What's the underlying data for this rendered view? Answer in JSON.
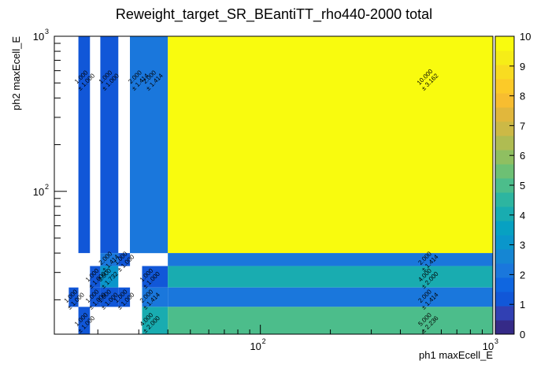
{
  "chart_data": {
    "type": "heatmap",
    "title": "Reweight_target_SR_BEantiTT_rho440-2000 total",
    "xlabel": "ph1 maxEcell_E",
    "ylabel": "ph2 maxEcell_E",
    "x_scale": "log",
    "y_scale": "log",
    "xlim": [
      13,
      1000
    ],
    "ylim": [
      12,
      1000
    ],
    "x_major_ticks": [
      {
        "value": 100,
        "label": "10",
        "exp": "2"
      },
      {
        "value": 1000,
        "label": "10",
        "exp": "3"
      }
    ],
    "y_major_ticks": [
      {
        "value": 100,
        "label": "10",
        "exp": "2"
      },
      {
        "value": 1000,
        "label": "10",
        "exp": "3"
      }
    ],
    "zlim": [
      0,
      10
    ],
    "colorbar_ticks": [
      "0",
      "1",
      "2",
      "3",
      "4",
      "5",
      "6",
      "7",
      "8",
      "9",
      "10"
    ],
    "colorbar_colors": [
      "#352a87",
      "#3140b3",
      "#1157d8",
      "#0f66e0",
      "#1a77dc",
      "#1586d3",
      "#0a96cb",
      "#07a1c2",
      "#19acb0",
      "#2db5a0",
      "#4cbd8b",
      "#6dc074",
      "#8fbf61",
      "#afbc52",
      "#ccb946",
      "#e1b73c",
      "#f7bd30",
      "#fcca28",
      "#f8dc21",
      "#f6ed17",
      "#f9fb0e"
    ],
    "grid": false,
    "cells": [
      {
        "x0": 16.5,
        "x1": 18.5,
        "y0": 40,
        "y1": 1000,
        "value": 1.0,
        "value_label": "1.000",
        "error_label": "± 1.000",
        "label_x": 17.3,
        "label_y": 530
      },
      {
        "x0": 20.5,
        "x1": 24.5,
        "y0": 40,
        "y1": 1000,
        "value": 1.0,
        "value_label": "1.000",
        "error_label": "± 1.000",
        "label_x": 22.0,
        "label_y": 530
      },
      {
        "x0": 27.5,
        "x1": 40,
        "y0": 40,
        "y1": 1000,
        "value": 2.0,
        "value_label": "2.000",
        "error_label": "± 1.414",
        "label_x": 29.5,
        "label_y": 530
      },
      {
        "x0": 27.5,
        "x1": 40,
        "y0": 40,
        "y1": 1000,
        "value": 2.0,
        "value_label": "2.000",
        "error_label": "± 1.414",
        "label_x": 34.0,
        "label_y": 530
      },
      {
        "x0": 40,
        "x1": 1000,
        "y0": 40,
        "y1": 1000,
        "value": 10.0,
        "value_label": "10.000",
        "error_label": "± 3.162",
        "label_x": 520,
        "label_y": 530
      },
      {
        "x0": 20.5,
        "x1": 24.5,
        "y0": 33,
        "y1": 40,
        "value": 2.0,
        "value_label": "2.000",
        "error_label": "± 1.414",
        "label_x": 22.0,
        "label_y": 36
      },
      {
        "x0": 24.5,
        "x1": 27.5,
        "y0": 33,
        "y1": 40,
        "value": 1.0,
        "value_label": "1.000",
        "error_label": "± 1.000",
        "label_x": 25.6,
        "label_y": 36
      },
      {
        "x0": 40,
        "x1": 1000,
        "y0": 33,
        "y1": 40,
        "value": 2.0,
        "value_label": "2.000",
        "error_label": "± 1.414",
        "label_x": 520,
        "label_y": 36
      },
      {
        "x0": 18.5,
        "x1": 20.5,
        "y0": 24,
        "y1": 33,
        "value": 1.0,
        "value_label": "1.000",
        "error_label": "± 1.000",
        "label_x": 19.3,
        "label_y": 28
      },
      {
        "x0": 20.5,
        "x1": 24.5,
        "y0": 24,
        "y1": 33,
        "value": 3.0,
        "value_label": "3.000",
        "error_label": "± 1.732",
        "label_x": 21.8,
        "label_y": 28
      },
      {
        "x0": 31,
        "x1": 40,
        "y0": 24,
        "y1": 33,
        "value": 1.0,
        "value_label": "1.000",
        "error_label": "± 1.000",
        "label_x": 33.0,
        "label_y": 28
      },
      {
        "x0": 40,
        "x1": 1000,
        "y0": 24,
        "y1": 33,
        "value": 4.0,
        "value_label": "4.000",
        "error_label": "± 2.000",
        "label_x": 520,
        "label_y": 28
      },
      {
        "x0": 15,
        "x1": 16.5,
        "y0": 18,
        "y1": 24,
        "value": 1.0,
        "value_label": "1.000",
        "error_label": "± 1.000",
        "label_x": 15.6,
        "label_y": 20.5
      },
      {
        "x0": 18.5,
        "x1": 20.5,
        "y0": 18,
        "y1": 24,
        "value": 1.0,
        "value_label": "1.000",
        "error_label": "± 1.000",
        "label_x": 19.3,
        "label_y": 20.5
      },
      {
        "x0": 20.5,
        "x1": 24.5,
        "y0": 18,
        "y1": 24,
        "value": 1.0,
        "value_label": "1.000",
        "error_label": "± 1.000",
        "label_x": 21.8,
        "label_y": 20.5
      },
      {
        "x0": 24.5,
        "x1": 27.5,
        "y0": 18,
        "y1": 24,
        "value": 1.0,
        "value_label": "1.000",
        "error_label": "± 1.000",
        "label_x": 25.6,
        "label_y": 20.5
      },
      {
        "x0": 31,
        "x1": 40,
        "y0": 18,
        "y1": 24,
        "value": 2.0,
        "value_label": "2.000",
        "error_label": "± 1.414",
        "label_x": 33.0,
        "label_y": 20.5
      },
      {
        "x0": 40,
        "x1": 1000,
        "y0": 18,
        "y1": 24,
        "value": 2.0,
        "value_label": "2.000",
        "error_label": "± 1.414",
        "label_x": 520,
        "label_y": 20.5
      },
      {
        "x0": 16.5,
        "x1": 18.5,
        "y0": 12,
        "y1": 18,
        "value": 1.0,
        "value_label": "1.000",
        "error_label": "± 1.000",
        "label_x": 17.3,
        "label_y": 14.5
      },
      {
        "x0": 31,
        "x1": 40,
        "y0": 12,
        "y1": 18,
        "value": 4.0,
        "value_label": "4.000",
        "error_label": "± 2.000",
        "label_x": 33.0,
        "label_y": 14.5
      },
      {
        "x0": 40,
        "x1": 1000,
        "y0": 12,
        "y1": 18,
        "value": 5.0,
        "value_label": "5.000",
        "error_label": "± 2.236",
        "label_x": 520,
        "label_y": 14.5
      }
    ]
  }
}
